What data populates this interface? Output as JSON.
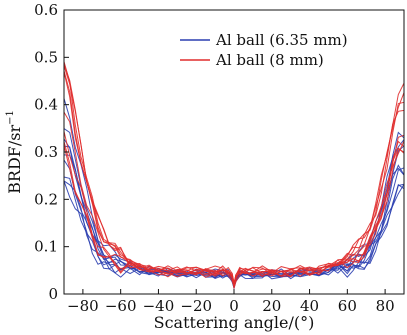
{
  "chart_data": {
    "type": "line",
    "xlabel": "Scattering angle/(°)",
    "ylabel": "BRDF/sr",
    "ylabel_superscript": "−1",
    "xlim": [
      -90,
      90
    ],
    "ylim": [
      0,
      0.6
    ],
    "xticks": [
      -80,
      -60,
      -40,
      -20,
      0,
      20,
      40,
      60,
      80
    ],
    "xtick_labels": [
      "−80",
      "−60",
      "−40",
      "−20",
      "0",
      "20",
      "40",
      "60",
      "80"
    ],
    "yticks": [
      0,
      0.1,
      0.2,
      0.3,
      0.4,
      0.5,
      0.6
    ],
    "ytick_labels": [
      "0",
      "0.1",
      "0.2",
      "0.3",
      "0.4",
      "0.5",
      "0.6"
    ],
    "legend_position": "top-right",
    "series": [
      {
        "name": "Al ball (6.35 mm)",
        "color": "#2b3fb0",
        "x": [
          -90,
          -87,
          -84,
          -81,
          -78,
          -75,
          -72,
          -69,
          -66,
          -63,
          -60,
          -55,
          -50,
          -45,
          -40,
          -35,
          -30,
          -25,
          -20,
          -15,
          -10,
          -6,
          -3,
          -1,
          0,
          1,
          3,
          6,
          10,
          15,
          20,
          25,
          30,
          35,
          40,
          45,
          50,
          55,
          60,
          63,
          66,
          69,
          72,
          75,
          78,
          81,
          84,
          87,
          90
        ],
        "values": [
          0.32,
          0.3,
          0.26,
          0.22,
          0.17,
          0.13,
          0.1,
          0.085,
          0.075,
          0.068,
          0.062,
          0.056,
          0.052,
          0.049,
          0.047,
          0.045,
          0.044,
          0.044,
          0.043,
          0.043,
          0.043,
          0.044,
          0.042,
          0.03,
          0.015,
          0.03,
          0.042,
          0.043,
          0.042,
          0.041,
          0.041,
          0.042,
          0.042,
          0.044,
          0.045,
          0.047,
          0.05,
          0.054,
          0.06,
          0.066,
          0.074,
          0.085,
          0.1,
          0.125,
          0.16,
          0.21,
          0.26,
          0.29,
          0.29
        ],
        "copies": 9
      },
      {
        "name": "Al ball (8 mm)",
        "color": "#e02d2d",
        "x": [
          -90,
          -87,
          -84,
          -81,
          -78,
          -75,
          -72,
          -69,
          -66,
          -63,
          -60,
          -55,
          -50,
          -45,
          -40,
          -35,
          -30,
          -25,
          -20,
          -15,
          -10,
          -6,
          -3,
          -1,
          0,
          1,
          3,
          6,
          10,
          15,
          20,
          25,
          30,
          35,
          40,
          45,
          50,
          55,
          60,
          63,
          66,
          69,
          72,
          75,
          78,
          81,
          84,
          87,
          90
        ],
        "values": [
          0.4,
          0.36,
          0.3,
          0.25,
          0.2,
          0.16,
          0.125,
          0.105,
          0.09,
          0.08,
          0.072,
          0.064,
          0.058,
          0.054,
          0.05,
          0.048,
          0.047,
          0.047,
          0.047,
          0.047,
          0.048,
          0.05,
          0.048,
          0.036,
          0.018,
          0.036,
          0.048,
          0.05,
          0.049,
          0.048,
          0.047,
          0.047,
          0.048,
          0.049,
          0.051,
          0.054,
          0.058,
          0.064,
          0.072,
          0.08,
          0.09,
          0.105,
          0.125,
          0.155,
          0.2,
          0.25,
          0.31,
          0.35,
          0.36
        ],
        "copies": 9
      }
    ]
  }
}
